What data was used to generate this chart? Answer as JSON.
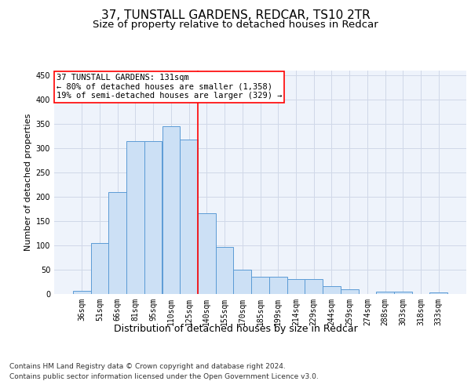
{
  "title": "37, TUNSTALL GARDENS, REDCAR, TS10 2TR",
  "subtitle": "Size of property relative to detached houses in Redcar",
  "xlabel": "Distribution of detached houses by size in Redcar",
  "ylabel": "Number of detached properties",
  "footer_line1": "Contains HM Land Registry data © Crown copyright and database right 2024.",
  "footer_line2": "Contains public sector information licensed under the Open Government Licence v3.0.",
  "bin_labels": [
    "36sqm",
    "51sqm",
    "66sqm",
    "81sqm",
    "95sqm",
    "110sqm",
    "125sqm",
    "140sqm",
    "155sqm",
    "170sqm",
    "185sqm",
    "199sqm",
    "214sqm",
    "229sqm",
    "244sqm",
    "259sqm",
    "274sqm",
    "288sqm",
    "303sqm",
    "318sqm",
    "333sqm"
  ],
  "bar_heights": [
    7,
    105,
    210,
    315,
    315,
    345,
    318,
    166,
    97,
    50,
    36,
    36,
    30,
    30,
    16,
    9,
    0,
    5,
    5,
    0,
    3
  ],
  "bar_color": "#cce0f5",
  "bar_edge_color": "#5b9bd5",
  "grid_color": "#d0d8e8",
  "background_color": "#eef3fb",
  "vline_x_index": 6.5,
  "vline_color": "red",
  "annotation_text": "37 TUNSTALL GARDENS: 131sqm\n← 80% of detached houses are smaller (1,358)\n19% of semi-detached houses are larger (329) →",
  "annotation_box_color": "red",
  "ylim": [
    0,
    460
  ],
  "yticks": [
    0,
    50,
    100,
    150,
    200,
    250,
    300,
    350,
    400,
    450
  ],
  "title_fontsize": 11,
  "subtitle_fontsize": 9.5,
  "xlabel_fontsize": 9,
  "ylabel_fontsize": 8,
  "tick_fontsize": 7,
  "annotation_fontsize": 7.5,
  "footer_fontsize": 6.5
}
